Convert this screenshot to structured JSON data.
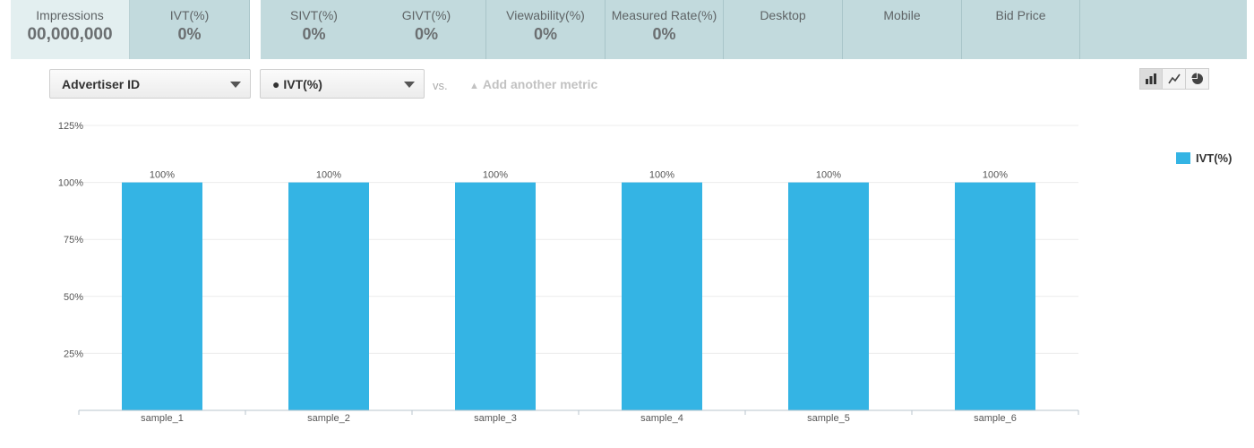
{
  "tabs": [
    {
      "label": "Impressions",
      "value": "00,000,000",
      "active": true
    },
    {
      "label": "IVT(%)",
      "value": "0%"
    },
    {
      "label": "SIVT(%)",
      "value": "0%"
    },
    {
      "label": "GIVT(%)",
      "value": "0%"
    },
    {
      "label": "Viewability(%)",
      "value": "0%"
    },
    {
      "label": "Measured Rate(%)",
      "value": "0%"
    },
    {
      "label": "Desktop",
      "value": ""
    },
    {
      "label": "Mobile",
      "value": ""
    },
    {
      "label": "Bid Price",
      "value": ""
    }
  ],
  "controls": {
    "dimension_select": "Advertiser ID",
    "metric_select": "● IVT(%)",
    "vs_text": "vs.",
    "add_metric_label": "Add another metric"
  },
  "chart_type_buttons": [
    {
      "icon": "bar-chart-icon",
      "active": true
    },
    {
      "icon": "line-chart-icon",
      "active": false
    },
    {
      "icon": "pie-chart-icon",
      "active": false
    }
  ],
  "chart_data": {
    "type": "bar",
    "categories": [
      "sample_1",
      "sample_2",
      "sample_3",
      "sample_4",
      "sample_5",
      "sample_6"
    ],
    "series": [
      {
        "name": "IVT(%)",
        "values": [
          100,
          100,
          100,
          100,
          100,
          100
        ],
        "color": "#34b4e4"
      }
    ],
    "data_labels": [
      "100%",
      "100%",
      "100%",
      "100%",
      "100%",
      "100%"
    ],
    "ylim": [
      0,
      125
    ],
    "yticks": [
      25,
      50,
      75,
      100,
      125
    ],
    "ytick_labels": [
      "25%",
      "50%",
      "75%",
      "100%",
      "125%"
    ],
    "grid": true,
    "legend_position": "right"
  }
}
